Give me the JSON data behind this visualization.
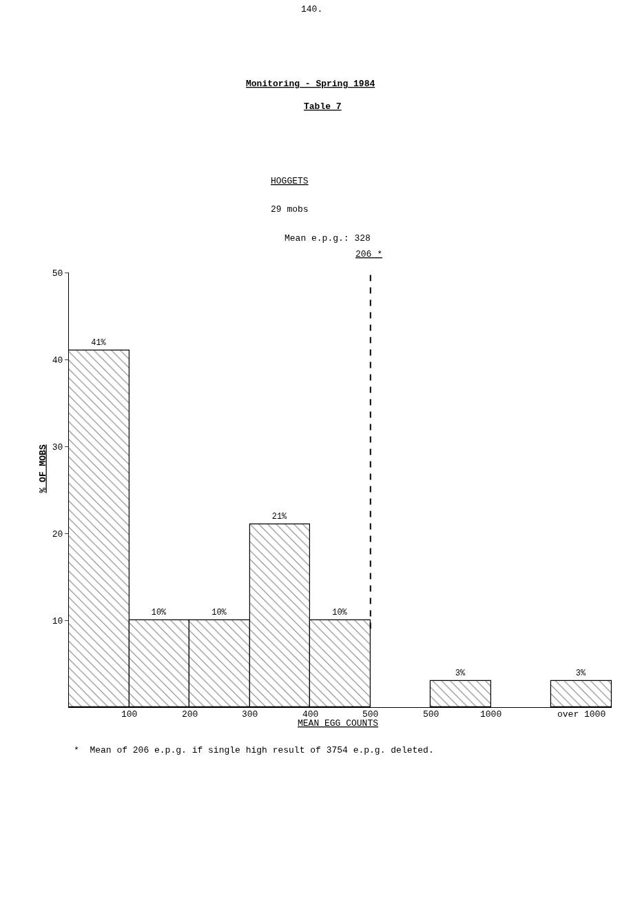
{
  "chart_data": {
    "type": "bar",
    "title": "Monitoring - Spring 1984",
    "subtitle": "Table 7",
    "xlabel": "MEAN EGG COUNTS",
    "ylabel": "% OF MOBS",
    "categories": [
      null,
      null,
      null,
      null,
      null,
      null,
      null,
      null,
      null
    ],
    "values": [
      41,
      10,
      10,
      21,
      10,
      null,
      3,
      null,
      3
    ],
    "value_labels": [
      "41%",
      "10%",
      "10%",
      "21%",
      "10%",
      null,
      "3%",
      null,
      "3%"
    ],
    "color": "#000000",
    "ylim": [
      0,
      50
    ],
    "yticks": [
      10,
      20,
      30,
      40,
      50
    ],
    "legend": false,
    "annotations": [
      "140.",
      "HOGGETS",
      "29 mobs",
      "Mean e.p.g.: 328",
      "206 *",
      "100",
      "200",
      "300",
      "400",
      "500",
      "500",
      "1000",
      "over 1000",
      "*  Mean of 206 e.p.g. if single high result of 3754 e.p.g. deleted."
    ]
  }
}
